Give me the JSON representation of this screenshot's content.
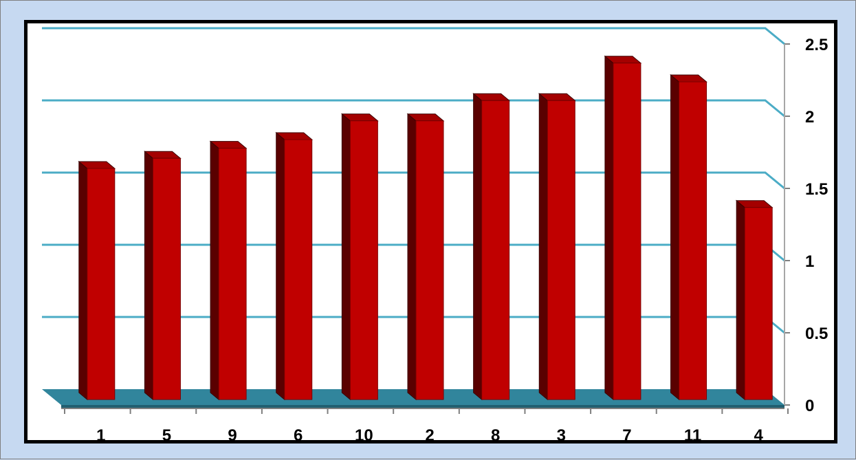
{
  "chart_data": {
    "type": "bar",
    "categories": [
      "1",
      "5",
      "9",
      "6",
      "10",
      "2",
      "8",
      "3",
      "7",
      "11",
      "4"
    ],
    "values": [
      1.6,
      1.67,
      1.74,
      1.8,
      1.93,
      1.93,
      2.07,
      2.07,
      2.33,
      2.2,
      1.33
    ],
    "title": "",
    "xlabel": "",
    "ylabel": "",
    "ylim": [
      0,
      2.5
    ],
    "yticks": [
      "0",
      "0.5",
      "1",
      "1.5",
      "2",
      "2.5"
    ],
    "grid": true,
    "legend": "none",
    "colors": {
      "bar_front": "#c00000",
      "bar_side": "#5a0000",
      "bar_top": "#a40000",
      "gridline": "#4bacc6",
      "floor": "#31859c",
      "page_background": "#c6d9f1"
    }
  }
}
